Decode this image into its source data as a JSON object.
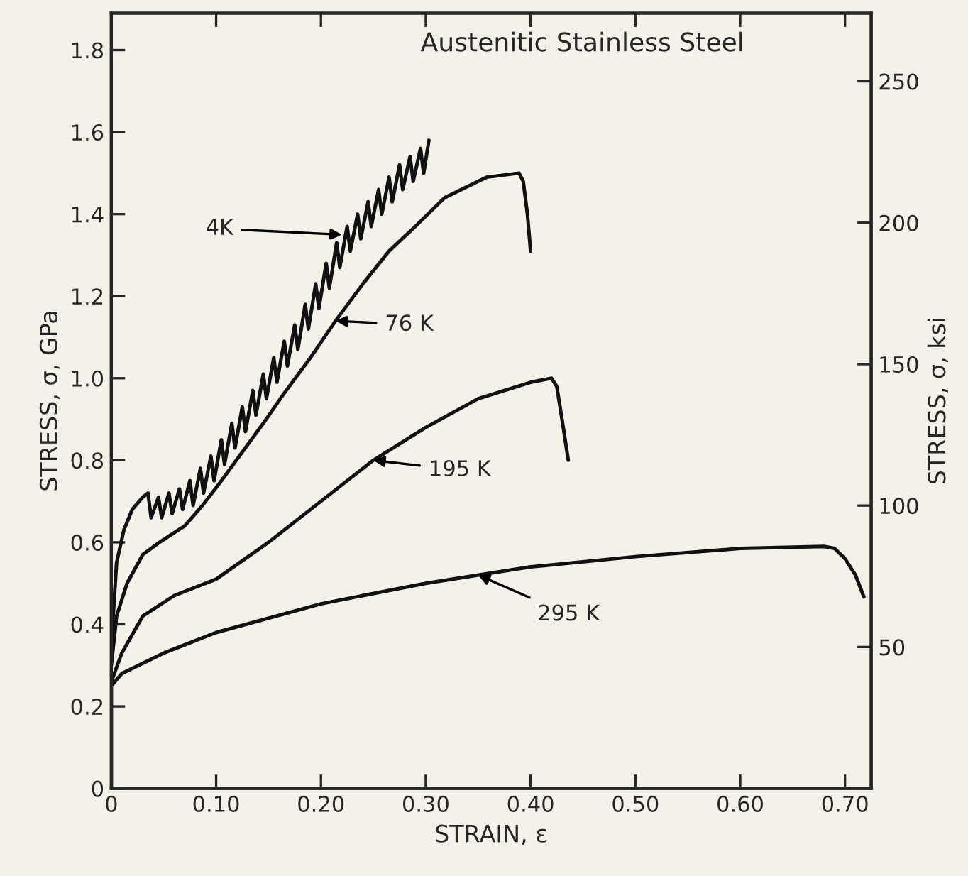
{
  "chart_data": {
    "type": "line",
    "title": "Austenitic Stainless Steel",
    "xlabel": "STRAIN, ε",
    "ylabel": "STRESS, σ, GPa",
    "y2label": "STRESS, σ, ksi",
    "xlim": [
      0,
      0.725
    ],
    "ylim": [
      0,
      1.89
    ],
    "y2lim": [
      0,
      274.1
    ],
    "xticks": [
      {
        "value": 0,
        "label": "0"
      },
      {
        "value": 0.1,
        "label": "0.10"
      },
      {
        "value": 0.2,
        "label": "0.20"
      },
      {
        "value": 0.3,
        "label": "0.30"
      },
      {
        "value": 0.4,
        "label": "0.40"
      },
      {
        "value": 0.5,
        "label": "0.50"
      },
      {
        "value": 0.6,
        "label": "0.60"
      },
      {
        "value": 0.7,
        "label": "0.70"
      }
    ],
    "yticks": [
      {
        "value": 0,
        "label": "0"
      },
      {
        "value": 0.2,
        "label": "0.2"
      },
      {
        "value": 0.4,
        "label": "0.4"
      },
      {
        "value": 0.6,
        "label": "0.6"
      },
      {
        "value": 0.8,
        "label": "0.8"
      },
      {
        "value": 1.0,
        "label": "1.0"
      },
      {
        "value": 1.2,
        "label": "1.2"
      },
      {
        "value": 1.4,
        "label": "1.4"
      },
      {
        "value": 1.6,
        "label": "1.6"
      },
      {
        "value": 1.8,
        "label": "1.8"
      }
    ],
    "y2ticks": [
      50,
      100,
      150,
      200,
      250
    ],
    "grid": false,
    "legend": false,
    "marker": "none",
    "line_style": "solid",
    "series": [
      {
        "color": "#111111",
        "x": [
          0,
          0.005,
          0.012,
          0.02,
          0.03,
          0.035,
          0.038,
          0.045,
          0.048,
          0.055,
          0.058,
          0.065,
          0.068,
          0.075,
          0.078,
          0.085,
          0.088,
          0.095,
          0.098,
          0.105,
          0.108,
          0.115,
          0.118,
          0.125,
          0.128,
          0.135,
          0.138,
          0.145,
          0.148,
          0.155,
          0.158,
          0.165,
          0.168,
          0.175,
          0.178,
          0.185,
          0.188,
          0.195,
          0.198,
          0.205,
          0.208,
          0.215,
          0.218,
          0.225,
          0.228,
          0.235,
          0.238,
          0.245,
          0.248,
          0.255,
          0.258,
          0.265,
          0.268,
          0.275,
          0.278,
          0.285,
          0.288,
          0.295,
          0.298,
          0.303
        ],
        "values": [
          0.35,
          0.55,
          0.63,
          0.68,
          0.71,
          0.72,
          0.66,
          0.71,
          0.66,
          0.72,
          0.67,
          0.73,
          0.68,
          0.75,
          0.69,
          0.78,
          0.72,
          0.81,
          0.75,
          0.85,
          0.79,
          0.89,
          0.83,
          0.93,
          0.87,
          0.97,
          0.91,
          1.01,
          0.95,
          1.05,
          0.99,
          1.09,
          1.03,
          1.13,
          1.07,
          1.18,
          1.12,
          1.23,
          1.17,
          1.28,
          1.22,
          1.33,
          1.27,
          1.37,
          1.31,
          1.4,
          1.34,
          1.43,
          1.37,
          1.46,
          1.4,
          1.49,
          1.43,
          1.52,
          1.46,
          1.54,
          1.48,
          1.56,
          1.5,
          1.58
        ]
      },
      {
        "color": "#111111",
        "x": [
          0,
          0.005,
          0.015,
          0.03,
          0.046,
          0.07,
          0.087,
          0.105,
          0.125,
          0.145,
          0.164,
          0.19,
          0.214,
          0.24,
          0.265,
          0.29,
          0.318,
          0.358,
          0.389,
          0.393,
          0.397,
          0.4
        ],
        "values": [
          0.3,
          0.42,
          0.5,
          0.57,
          0.6,
          0.64,
          0.69,
          0.75,
          0.82,
          0.89,
          0.96,
          1.05,
          1.14,
          1.23,
          1.31,
          1.37,
          1.44,
          1.49,
          1.5,
          1.48,
          1.4,
          1.31
        ]
      },
      {
        "color": "#111111",
        "x": [
          0,
          0.01,
          0.03,
          0.06,
          0.1,
          0.15,
          0.2,
          0.25,
          0.3,
          0.35,
          0.4,
          0.42,
          0.425,
          0.43,
          0.436
        ],
        "values": [
          0.26,
          0.33,
          0.42,
          0.47,
          0.51,
          0.6,
          0.7,
          0.8,
          0.88,
          0.95,
          0.99,
          1.0,
          0.98,
          0.9,
          0.8
        ]
      },
      {
        "color": "#111111",
        "x": [
          0,
          0,
          0.01,
          0.05,
          0.1,
          0.2,
          0.3,
          0.4,
          0.5,
          0.6,
          0.68,
          0.69,
          0.7,
          0.71,
          0.718
        ],
        "values": [
          0,
          0.25,
          0.28,
          0.33,
          0.38,
          0.45,
          0.5,
          0.54,
          0.565,
          0.585,
          0.59,
          0.585,
          0.56,
          0.52,
          0.467
        ]
      }
    ],
    "annotations": [
      {
        "text": "4K",
        "x": 0.22,
        "y": 1.35
      },
      {
        "text": "76 K",
        "x": 0.214,
        "y": 1.14
      },
      {
        "text": "195 K",
        "x": 0.25,
        "y": 0.8
      },
      {
        "text": "295 K",
        "x": 0.35,
        "y": 0.52
      }
    ]
  }
}
